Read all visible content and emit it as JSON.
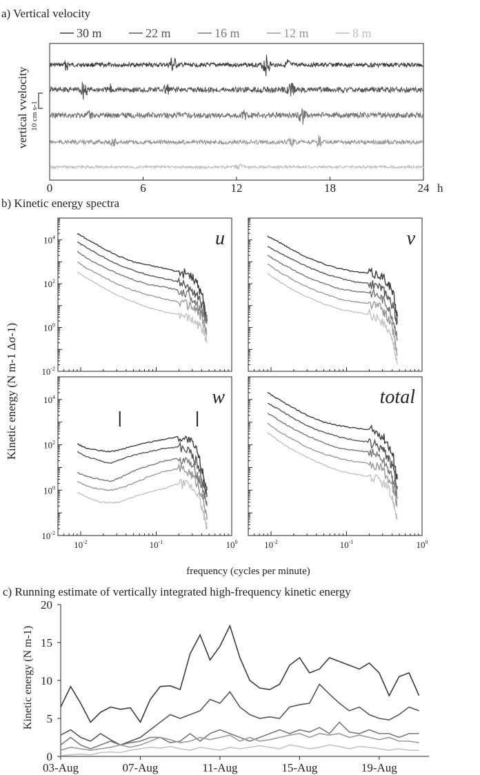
{
  "panel_a": {
    "heading": "a) Vertical velocity",
    "ylabel": "vertical vvelocity",
    "scale_label": "10 cm s-1",
    "x_unit": "h",
    "chart_data": {
      "type": "line",
      "x_ticks": [
        0,
        6,
        12,
        18,
        24
      ],
      "xlim": [
        0,
        24
      ],
      "series": [
        {
          "name": "30 m",
          "color": "#3a3a3a",
          "amplitude": 3,
          "bursts": [
            [
              1.1,
              0.22,
              8
            ],
            [
              7.9,
              0.3,
              14
            ],
            [
              13.9,
              0.35,
              15
            ],
            [
              15.3,
              0.2,
              8
            ]
          ]
        },
        {
          "name": "22 m",
          "color": "#555555",
          "amplitude": 4,
          "bursts": [
            [
              2.2,
              0.3,
              15
            ],
            [
              7.5,
              0.2,
              10
            ],
            [
              15.5,
              0.3,
              9
            ],
            [
              3.9,
              0.2,
              6
            ]
          ]
        },
        {
          "name": "16 m",
          "color": "#747474",
          "amplitude": 4,
          "bursts": [
            [
              16.2,
              0.35,
              13
            ],
            [
              12.5,
              0.2,
              5
            ],
            [
              2.6,
              0.2,
              5
            ]
          ]
        },
        {
          "name": "12 m",
          "color": "#969696",
          "amplitude": 3,
          "bursts": [
            [
              4.1,
              0.3,
              6
            ],
            [
              17.3,
              0.2,
              9
            ],
            [
              15.5,
              0.3,
              5
            ]
          ]
        },
        {
          "name": "8 m",
          "color": "#bdbdbd",
          "amplitude": 2,
          "bursts": [
            [
              12.2,
              0.4,
              3
            ]
          ]
        }
      ]
    }
  },
  "panel_b": {
    "heading": "b) Kinetic energy spectra",
    "ylabel": "Kinetic energy (N m-1 Δσ-1)",
    "xlabel": "frequency (cycles per minute)",
    "chart_data": [
      {
        "type": "line",
        "component": "u",
        "log_x": true,
        "log_y": true,
        "xlim": [
          0.005,
          1
        ],
        "ylim": [
          0.01,
          100000
        ],
        "x": [
          0.009,
          0.012,
          0.018,
          0.03,
          0.05,
          0.08,
          0.13,
          0.2,
          0.28,
          0.35,
          0.42,
          0.47
        ],
        "series": [
          {
            "name": "30 m",
            "values": [
              20000,
              11000,
              5000,
              2000,
              1000,
              700,
              500,
              350,
              250,
              100,
              20,
              2
            ]
          },
          {
            "name": "22 m",
            "values": [
              8000,
              4500,
              2000,
              800,
              400,
              250,
              170,
              120,
              60,
              30,
              8,
              2
            ]
          },
          {
            "name": "16 m",
            "values": [
              3000,
              1500,
              700,
              300,
              150,
              90,
              70,
              50,
              30,
              12,
              4,
              2
            ]
          },
          {
            "name": "12 m",
            "values": [
              1000,
              500,
              250,
              100,
              50,
              30,
              20,
              15,
              10,
              6,
              2,
              0.5
            ]
          },
          {
            "name": "8 m",
            "values": [
              350,
              180,
              80,
              30,
              15,
              8,
              5,
              4,
              2.5,
              1.5,
              0.8,
              0.2
            ]
          }
        ]
      },
      {
        "type": "line",
        "component": "v",
        "log_x": true,
        "log_y": true,
        "xlim": [
          0.005,
          1
        ],
        "ylim": [
          0.01,
          100000
        ],
        "x": [
          0.009,
          0.012,
          0.018,
          0.03,
          0.05,
          0.08,
          0.13,
          0.2,
          0.28,
          0.35,
          0.42,
          0.47
        ],
        "series": [
          {
            "name": "30 m",
            "values": [
              15000,
              9000,
              4000,
              1600,
              800,
              500,
              350,
              300,
              250,
              120,
              30,
              3
            ]
          },
          {
            "name": "22 m",
            "values": [
              5000,
              3000,
              1400,
              600,
              300,
              180,
              120,
              100,
              70,
              30,
              8,
              1.5
            ]
          },
          {
            "name": "16 m",
            "values": [
              2000,
              1100,
              500,
              200,
              100,
              60,
              45,
              40,
              25,
              10,
              2,
              0.3
            ]
          },
          {
            "name": "12 m",
            "values": [
              800,
              400,
              180,
              70,
              35,
              20,
              15,
              12,
              8,
              3,
              0.6,
              0.05
            ]
          },
          {
            "name": "8 m",
            "values": [
              300,
              150,
              60,
              25,
              12,
              7,
              5,
              4,
              2,
              1,
              0.2,
              0.02
            ]
          }
        ]
      },
      {
        "type": "line",
        "component": "w",
        "log_x": true,
        "log_y": true,
        "xlim": [
          0.005,
          1
        ],
        "ylim": [
          0.01,
          100000
        ],
        "markers_x": [
          0.033,
          0.35
        ],
        "x": [
          0.009,
          0.012,
          0.018,
          0.025,
          0.033,
          0.05,
          0.08,
          0.13,
          0.2,
          0.28,
          0.35,
          0.42,
          0.47
        ],
        "series": [
          {
            "name": "30 m",
            "values": [
              110,
              70,
              55,
              50,
              60,
              90,
              130,
              180,
              230,
              150,
              50,
              5,
              1
            ]
          },
          {
            "name": "22 m",
            "values": [
              50,
              30,
              20,
              15,
              22,
              35,
              50,
              70,
              80,
              50,
              15,
              2,
              0.5
            ]
          },
          {
            "name": "16 m",
            "values": [
              6,
              4,
              3,
              2.5,
              3.5,
              7,
              12,
              20,
              25,
              15,
              5,
              1,
              0.2
            ]
          },
          {
            "name": "12 m",
            "values": [
              2.5,
              1.5,
              1.1,
              1,
              1.2,
              2,
              4,
              7,
              9,
              6,
              2,
              0.4,
              0.05
            ]
          },
          {
            "name": "8 m",
            "values": [
              0.8,
              0.5,
              0.3,
              0.28,
              0.3,
              0.5,
              0.8,
              1.2,
              2,
              1.5,
              0.8,
              0.1,
              0.02
            ]
          }
        ]
      },
      {
        "type": "line",
        "component": "total",
        "log_x": true,
        "log_y": true,
        "xlim": [
          0.005,
          1
        ],
        "ylim": [
          0.01,
          100000
        ],
        "x": [
          0.009,
          0.012,
          0.018,
          0.03,
          0.05,
          0.08,
          0.13,
          0.2,
          0.28,
          0.35,
          0.42,
          0.47
        ],
        "series": [
          {
            "name": "30 m",
            "values": [
              20000,
              11000,
              5000,
              2000,
              1000,
              700,
              550,
              450,
              300,
              120,
              25,
              3
            ]
          },
          {
            "name": "22 m",
            "values": [
              7000,
              4000,
              1800,
              700,
              350,
              220,
              160,
              130,
              80,
              30,
              8,
              1.5
            ]
          },
          {
            "name": "16 m",
            "values": [
              2500,
              1400,
              600,
              250,
              120,
              70,
              55,
              50,
              30,
              10,
              2.5,
              0.5
            ]
          },
          {
            "name": "12 m",
            "values": [
              900,
              450,
              200,
              80,
              40,
              25,
              18,
              15,
              10,
              4,
              1,
              0.2
            ]
          },
          {
            "name": "8 m",
            "values": [
              350,
              170,
              70,
              28,
              13,
              7,
              5,
              4,
              2.5,
              1.2,
              0.3,
              0.05
            ]
          }
        ]
      }
    ]
  },
  "panel_c": {
    "heading": "c) Running estimate of vertically integrated high-frequency kinetic energy",
    "ylabel": "Kinetic energy (N m-1)",
    "chart_data": {
      "type": "line",
      "x_ticks": [
        "03-Aug",
        "07-Aug",
        "11-Aug",
        "15-Aug",
        "19-Aug"
      ],
      "xlim": [
        0,
        18.5
      ],
      "ylim": [
        0,
        20
      ],
      "y_ticks": [
        0,
        5,
        10,
        15,
        20
      ],
      "x": [
        0,
        0.5,
        1,
        1.5,
        2,
        2.5,
        3,
        3.5,
        4,
        4.5,
        5,
        5.5,
        6,
        6.5,
        7,
        7.5,
        8,
        8.5,
        9,
        9.5,
        10,
        10.5,
        11,
        11.5,
        12,
        12.5,
        13,
        13.5,
        14,
        14.5,
        15,
        15.5,
        16,
        16.5,
        17,
        17.5,
        18
      ],
      "series": [
        {
          "color": "#3a3a3a",
          "values": [
            6.5,
            9.2,
            7,
            4.5,
            5.8,
            6.5,
            6.2,
            6.4,
            4.5,
            7.5,
            9.2,
            9.3,
            8.8,
            13.5,
            16,
            12.7,
            14.5,
            17.2,
            13,
            10,
            9,
            8.8,
            9.5,
            12,
            13,
            11,
            11.5,
            13,
            12.5,
            12,
            11.5,
            12.3,
            11,
            8,
            10.5,
            11,
            8
          ]
        },
        {
          "color": "#555555",
          "values": [
            2.8,
            3.5,
            2.5,
            2,
            3,
            2.2,
            1.5,
            2,
            2.5,
            3.5,
            4.5,
            5.5,
            5,
            5.5,
            6,
            7.5,
            7,
            8.5,
            6.5,
            5.5,
            5,
            5.2,
            5,
            6.5,
            6.8,
            7,
            9.5,
            8.2,
            7,
            6,
            6.5,
            5.5,
            5,
            4.8,
            5.5,
            6.5,
            6
          ]
        },
        {
          "color": "#777777",
          "values": [
            1.5,
            2.5,
            1.5,
            1,
            1.5,
            2,
            1.5,
            1.8,
            2,
            2.5,
            2.5,
            1.8,
            2,
            3,
            2,
            3,
            3.5,
            3,
            2.5,
            2,
            2.5,
            3,
            3.5,
            3,
            3.5,
            3.2,
            3.8,
            3,
            4.5,
            3.2,
            3,
            3.5,
            3,
            3,
            2.5,
            3,
            3
          ]
        },
        {
          "color": "#999999",
          "values": [
            0.8,
            1.2,
            1,
            0.8,
            1,
            1.2,
            1.5,
            1.2,
            1.5,
            2,
            2.5,
            2.2,
            1.8,
            2,
            2.5,
            2.2,
            2.5,
            2.8,
            2,
            2.5,
            2,
            2.2,
            2.5,
            2.8,
            3,
            2.5,
            3,
            2.8,
            3,
            2.5,
            2.8,
            2.5,
            2.2,
            2.5,
            2,
            2,
            1.8
          ]
        },
        {
          "color": "#c2c2c2",
          "values": [
            0.1,
            0.2,
            0.3,
            0.2,
            0.5,
            0.6,
            0.5,
            0.8,
            1,
            1.2,
            1.1,
            1.3,
            1,
            0.8,
            1.2,
            1,
            0.8,
            1.2,
            1,
            1.2,
            1.4,
            1.2,
            1,
            1.5,
            1.3,
            1,
            1.2,
            1.5,
            1.3,
            1,
            1.3,
            1.2,
            1,
            0.8,
            1,
            0.8,
            0.8
          ]
        }
      ]
    }
  }
}
